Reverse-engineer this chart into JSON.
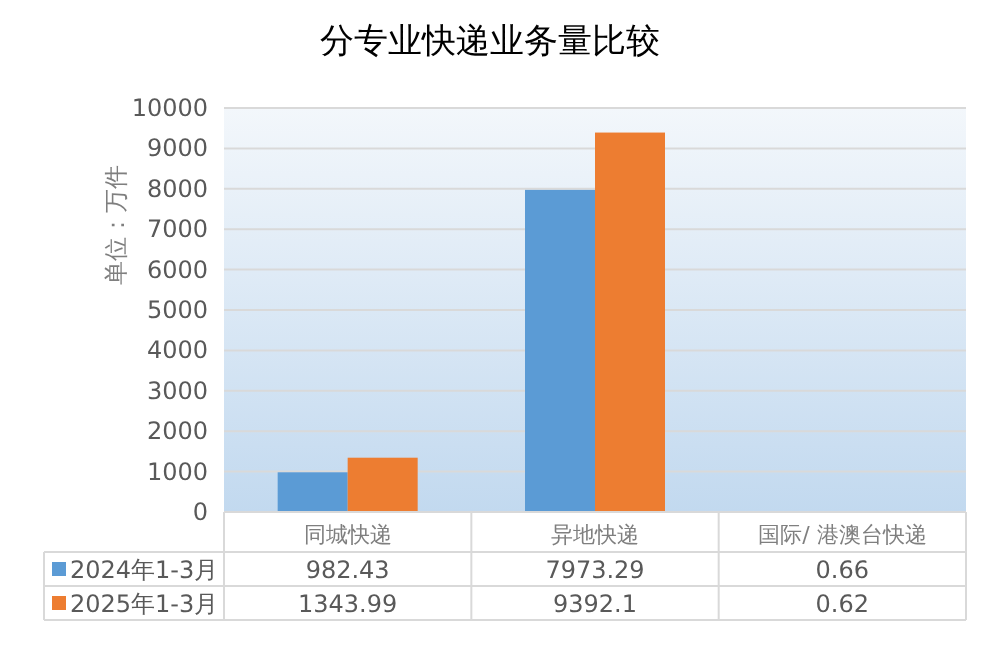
{
  "chart_data": {
    "type": "bar",
    "title": "分专业快递业务量比较",
    "ylabel": "单位：万件",
    "categories": [
      "同城快递",
      "异地快递",
      "国际/ 港澳台快递"
    ],
    "series": [
      {
        "name": "2024年1-3月",
        "color": "#5b9bd5",
        "values": [
          982.43,
          7973.29,
          0.66
        ]
      },
      {
        "name": "2025年1-3月",
        "color": "#ed7d31",
        "values": [
          1343.99,
          9392.1,
          0.62
        ]
      }
    ],
    "ylim": [
      0,
      10000
    ],
    "yticks": [
      0,
      1000,
      2000,
      3000,
      4000,
      5000,
      6000,
      7000,
      8000,
      9000,
      10000
    ],
    "grid": "y",
    "legend": "bottom",
    "data_labels": true
  }
}
